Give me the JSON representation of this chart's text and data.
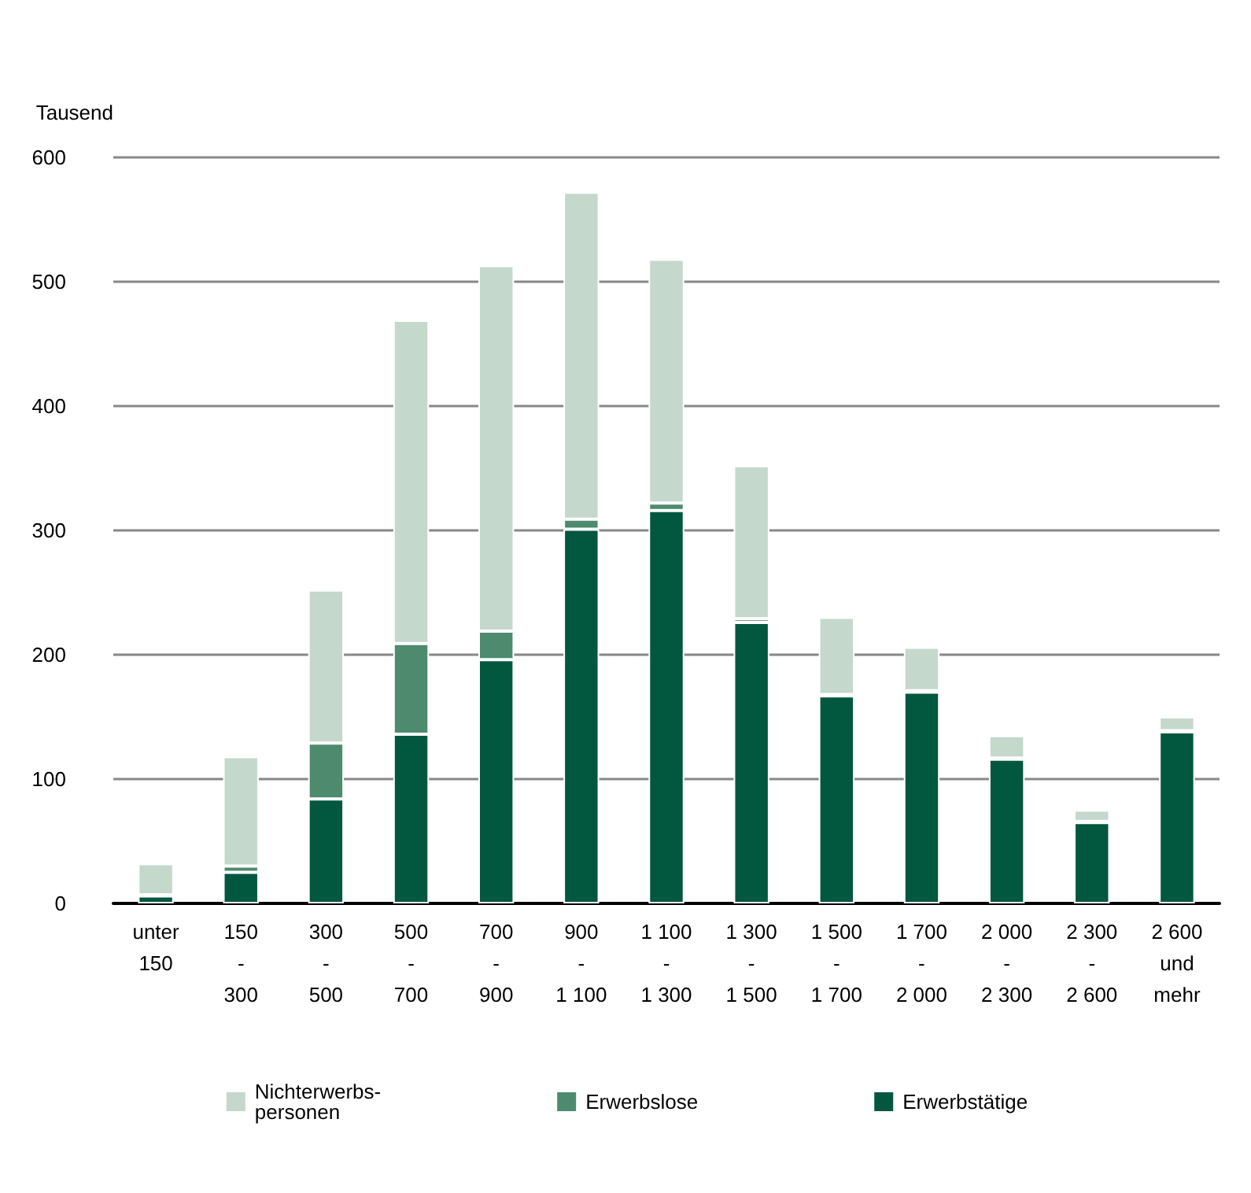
{
  "chart_data": {
    "type": "bar",
    "stacked": true,
    "ylabel": "Tausend",
    "categories": [
      "unter\n150",
      "150\n-\n300",
      "300\n-\n500",
      "500\n-\n700",
      "700\n-\n900",
      "900\n-\n1 100",
      "1 100\n-\n1 300",
      "1 300\n-\n1 500",
      "1 500\n-\n1 700",
      "1 700\n-\n2 000",
      "2 000\n-\n2 300",
      "2 300\n-\n2 600",
      "2 600\nund\nmehr"
    ],
    "series": [
      {
        "name": "Erwerbstätige",
        "color": "#02573f",
        "values": [
          6,
          25,
          84,
          136,
          196,
          301,
          316,
          226,
          167,
          170,
          116,
          65,
          138
        ]
      },
      {
        "name": "Erwerbslose",
        "color": "#4d8a6e",
        "values": [
          1,
          5,
          45,
          73,
          23,
          8,
          6,
          3,
          1,
          1,
          1,
          1,
          1
        ]
      },
      {
        "name": "Nichterwerbs-\npersonen",
        "color": "#c4d8cc",
        "values": [
          25,
          88,
          123,
          260,
          294,
          263,
          196,
          123,
          62,
          35,
          18,
          9,
          11
        ]
      }
    ],
    "ylim": [
      0,
      600
    ],
    "yticks": [
      0,
      100,
      200,
      300,
      400,
      500,
      600
    ],
    "grid": "y",
    "legend": "bottom"
  }
}
